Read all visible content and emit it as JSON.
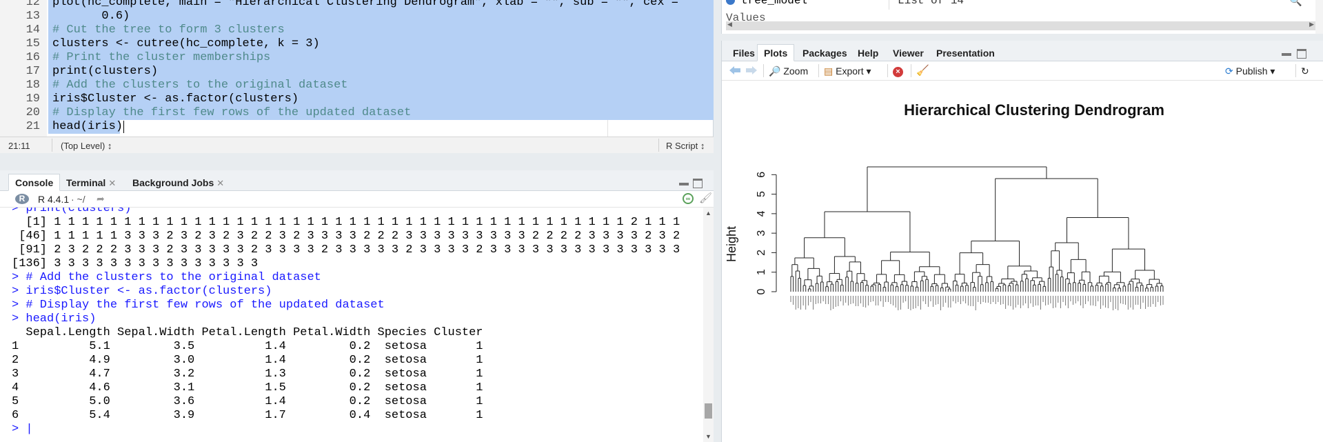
{
  "editor": {
    "lines": [
      {
        "n": "12",
        "text": "plot(hc_complete, main = \"Hierarchical Clustering Dendrogram\", xlab = \"\", sub = \"\", cex =",
        "kind": "code"
      },
      {
        "n": "13",
        "text": "       0.6)",
        "kind": "code"
      },
      {
        "n": "14",
        "text": "# Cut the tree to form 3 clusters",
        "kind": "comment"
      },
      {
        "n": "15",
        "text": "clusters <- cutree(hc_complete, k = 3)",
        "kind": "code"
      },
      {
        "n": "16",
        "text": "# Print the cluster memberships",
        "kind": "comment"
      },
      {
        "n": "17",
        "text": "print(clusters)",
        "kind": "code"
      },
      {
        "n": "18",
        "text": "# Add the clusters to the original dataset",
        "kind": "comment"
      },
      {
        "n": "19",
        "text": "iris$Cluster <- as.factor(clusters)",
        "kind": "code"
      },
      {
        "n": "20",
        "text": "# Display the first few rows of the updated dataset",
        "kind": "comment"
      },
      {
        "n": "21",
        "text": "head(iris)",
        "kind": "code"
      }
    ],
    "status": {
      "position": "21:11",
      "level": "(Top Level) ↕",
      "filetype": "R Script ↕"
    }
  },
  "console": {
    "tabs": [
      {
        "label": "Console",
        "closable": false
      },
      {
        "label": "Terminal",
        "closable": true
      },
      {
        "label": "Background Jobs",
        "closable": true
      }
    ],
    "version": "R 4.4.1",
    "path": "· ~/",
    "lines": [
      {
        "kind": "cmd",
        "text": "> print(clusters)"
      },
      {
        "kind": "out",
        "text": "  [1] 1 1 1 1 1 1 1 1 1 1 1 1 1 1 1 1 1 1 1 1 1 1 1 1 1 1 1 1 1 1 1 1 1 1 1 1 1 1 1 1 1 2 1 1 1"
      },
      {
        "kind": "out",
        "text": " [46] 1 1 1 1 1 3 3 3 2 3 2 3 2 3 2 2 3 2 3 3 3 3 2 2 2 3 3 3 3 3 3 3 3 3 2 2 2 2 3 3 3 3 2 3 2"
      },
      {
        "kind": "out",
        "text": " [91] 2 3 2 2 2 3 3 3 2 3 3 3 3 3 2 3 3 3 3 2 3 3 3 3 3 2 3 3 3 3 2 3 3 3 3 3 3 3 3 3 3 3 3 3 3"
      },
      {
        "kind": "out",
        "text": "[136] 3 3 3 3 3 3 3 3 3 3 3 3 3 3 3"
      },
      {
        "kind": "cmd",
        "text": "> # Add the clusters to the original dataset"
      },
      {
        "kind": "cmd",
        "text": "> iris$Cluster <- as.factor(clusters)"
      },
      {
        "kind": "cmd",
        "text": "> # Display the first few rows of the updated dataset"
      },
      {
        "kind": "cmd",
        "text": "> head(iris)"
      },
      {
        "kind": "out",
        "text": "  Sepal.Length Sepal.Width Petal.Length Petal.Width Species Cluster"
      },
      {
        "kind": "out",
        "text": "1          5.1         3.5          1.4         0.2  setosa       1"
      },
      {
        "kind": "out",
        "text": "2          4.9         3.0          1.4         0.2  setosa       1"
      },
      {
        "kind": "out",
        "text": "3          4.7         3.2          1.3         0.2  setosa       1"
      },
      {
        "kind": "out",
        "text": "4          4.6         3.1          1.5         0.2  setosa       1"
      },
      {
        "kind": "out",
        "text": "5          5.0         3.6          1.4         0.2  setosa       1"
      },
      {
        "kind": "out",
        "text": "6          5.4         3.9          1.7         0.4  setosa       1"
      },
      {
        "kind": "cmd",
        "text": "> |"
      }
    ]
  },
  "environment": {
    "row": {
      "name": "tree_model",
      "value": "List of  14"
    },
    "section": "Values",
    "partial": "0.3333333333333"
  },
  "plots_pane": {
    "tabs": [
      "Files",
      "Plots",
      "Packages",
      "Help",
      "Viewer",
      "Presentation"
    ],
    "active_tab": "Plots",
    "toolbar": {
      "zoom": "Zoom",
      "export": "Export",
      "publish": "Publish"
    }
  },
  "chart_data": {
    "type": "dendrogram",
    "title": "Hierarchical Clustering Dendrogram",
    "ylabel": "Height",
    "yticks": [
      0,
      1,
      2,
      3,
      4,
      5,
      6
    ],
    "ylim": [
      0,
      6.6
    ],
    "n_leaves": 150,
    "top_merge_height": 6.4,
    "merges": [
      {
        "height": 6.4,
        "between": [
          "cluster-A",
          "cluster-BC"
        ]
      },
      {
        "height": 5.8,
        "between": [
          "cluster-B",
          "cluster-C"
        ]
      },
      {
        "height": 4.1,
        "within": "cluster-A"
      },
      {
        "height": 3.8,
        "within": "cluster-C"
      },
      {
        "height": 2.6,
        "within": "cluster-B"
      }
    ]
  },
  "colors": {
    "selection": "#b5d0f5",
    "command": "#1a1aff",
    "comment": "#4f8a8b",
    "string": "#2b7a2b"
  }
}
